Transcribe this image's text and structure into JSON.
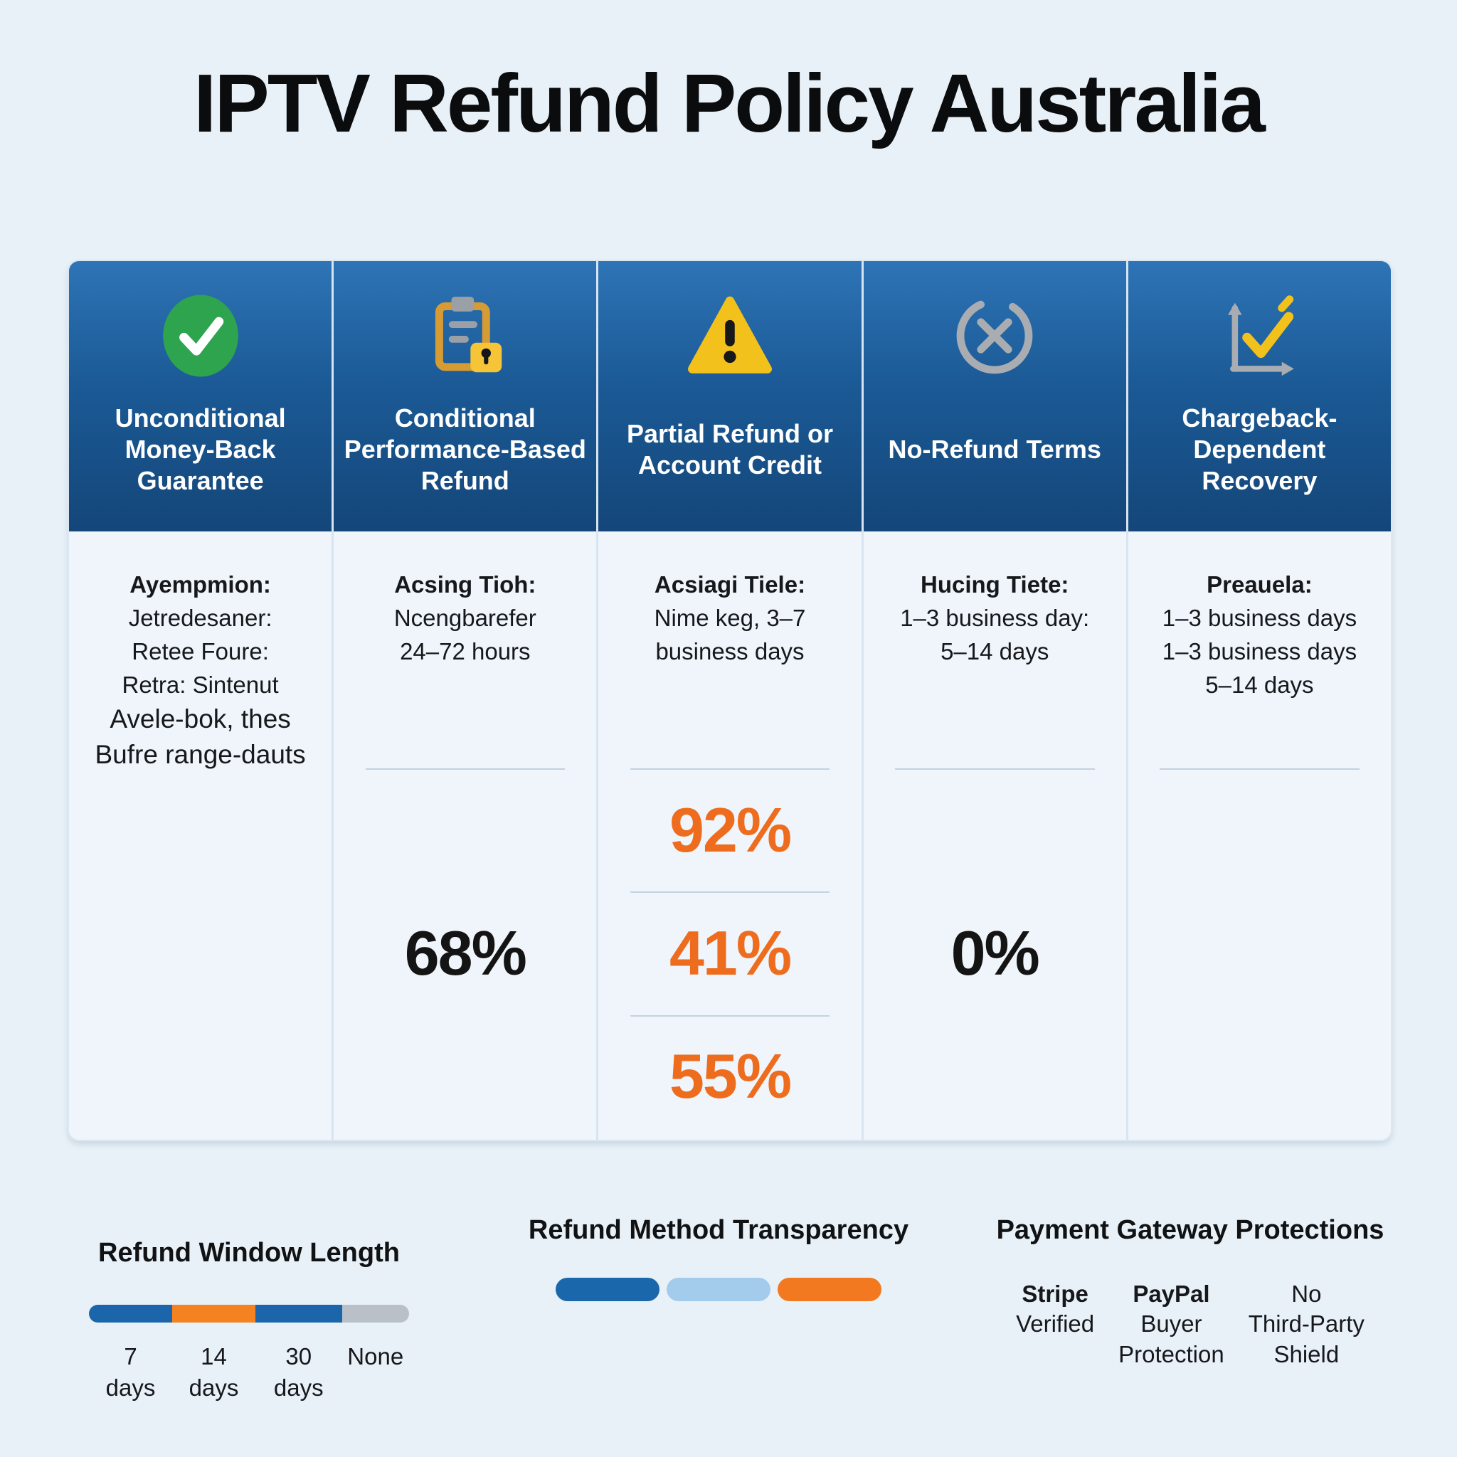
{
  "title": "IPTV Refund Policy Australia",
  "colors": {
    "background": "#e9f1f8",
    "card_background": "#eff5fa",
    "header_gradient_top": "#2e74b6",
    "header_gradient_bottom": "#144679",
    "header_text": "#ffffff",
    "accent_orange": "#ee6c1d",
    "bar_blue": "#1b66ab",
    "bar_light_blue": "#a3cbec",
    "bar_orange": "#f58220",
    "bar_gray": "#b9c0c7",
    "check_green": "#2ea44f",
    "warning_yellow": "#f3c11b",
    "icon_gray": "#9aa0a6"
  },
  "columns": [
    {
      "icon": "check-circle-icon",
      "title": "Unconditional Money-Back Guarantee",
      "body_lines": [
        {
          "text": "Ayempmion:",
          "bold": true
        },
        {
          "text": "Jetredesaner:"
        },
        {
          "text": "Retee Foure:"
        },
        {
          "text": "Retra: Sintenut"
        },
        {
          "text": "Avele-bok, thes",
          "large": true
        },
        {
          "text": "Bufre range-dauts",
          "large": true
        }
      ],
      "slots": []
    },
    {
      "icon": "clipboard-lock-icon",
      "title": "Conditional Performance-Based Refund",
      "body_lines": [
        {
          "text": "Acsing Tioh:",
          "bold": true
        },
        {
          "text": "Ncengbarefer"
        },
        {
          "text": "24–72 hours"
        }
      ],
      "slots": [
        {
          "divider": true
        },
        {
          "percent": "68%",
          "percent_color": "#141414"
        },
        {}
      ]
    },
    {
      "icon": "warning-triangle-icon",
      "title": "Partial Refund or Account Credit",
      "body_lines": [
        {
          "text": "Acsiagi Tiele:",
          "bold": true
        },
        {
          "text": "Nime keg, 3–7"
        },
        {
          "text": "business days"
        }
      ],
      "slots": [
        {
          "divider": true,
          "percent": "92%",
          "percent_color": "#ee6c1d"
        },
        {
          "divider": true,
          "percent": "41%",
          "percent_color": "#ee6c1d"
        },
        {
          "divider": true,
          "percent": "55%",
          "percent_color": "#ee6c1d"
        }
      ]
    },
    {
      "icon": "circle-x-icon",
      "title": "No-Refund Terms",
      "body_lines": [
        {
          "text": "Hucing Tiete:",
          "bold": true
        },
        {
          "text": "1–3 business day:"
        },
        {
          "text": "5–14 days"
        }
      ],
      "slots": [
        {
          "divider": true
        },
        {
          "percent": "0%",
          "percent_color": "#141414"
        },
        {}
      ]
    },
    {
      "icon": "chart-check-icon",
      "title": "Chargeback-Dependent Recovery",
      "body_lines": [
        {
          "text": "Preauela:",
          "bold": true
        },
        {
          "text": "1–3 business days"
        },
        {
          "text": "1–3 business days"
        },
        {
          "text": "5–14 days"
        }
      ],
      "slots": [
        {
          "divider": true
        },
        {},
        {}
      ]
    }
  ],
  "legends": {
    "refund_window": {
      "title": "Refund Window Length",
      "segments": [
        {
          "lines": [
            "7",
            "days"
          ],
          "color": "#1b66ab",
          "width": 26
        },
        {
          "lines": [
            "14",
            "days"
          ],
          "color": "#f58220",
          "width": 26
        },
        {
          "lines": [
            "30",
            "days"
          ],
          "color": "#1b66ab",
          "width": 27
        },
        {
          "lines": [
            "None"
          ],
          "color": "#b9c0c7",
          "width": 21
        }
      ]
    },
    "refund_method": {
      "title": "Refund Method Transparency",
      "segments": [
        {
          "color": "#1a67ab"
        },
        {
          "color": "#a3cbec"
        },
        {
          "color": "#f2791f"
        }
      ]
    },
    "payment_gateway": {
      "title": "Payment Gateway Protections",
      "items": [
        {
          "lines": [
            "Stripe",
            "Verified"
          ],
          "bold_first": true
        },
        {
          "lines": [
            "PayPal",
            "Buyer",
            "Protection"
          ],
          "bold_first": true
        },
        {
          "lines": [
            "No",
            "Third-Party",
            "Shield"
          ],
          "bold_first": false
        }
      ]
    }
  }
}
